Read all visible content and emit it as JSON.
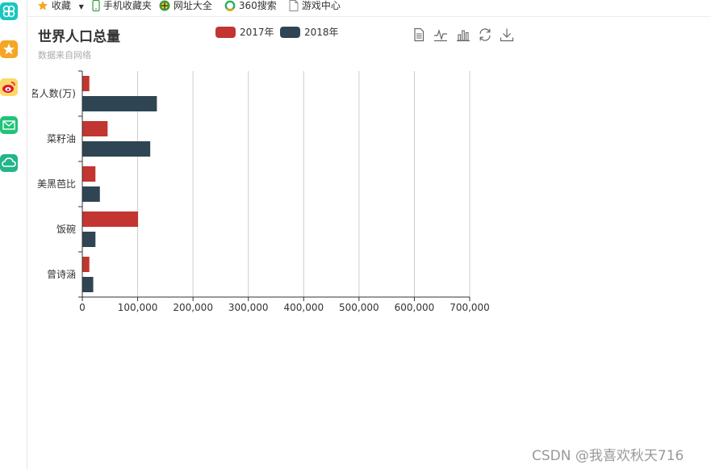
{
  "browser": {
    "bookmarks": [
      {
        "label": "收藏",
        "icon": "star-icon"
      },
      {
        "label": "手机收藏夹",
        "icon": "phone-icon"
      },
      {
        "label": "网址大全",
        "icon": "globe-icon"
      },
      {
        "label": "360搜索",
        "icon": "search-360-icon"
      },
      {
        "label": "游戏中心",
        "icon": "document-icon"
      }
    ],
    "sidebar_icons": [
      "clover-icon",
      "star-icon",
      "weibo-icon",
      "mail-icon",
      "cloud-icon"
    ]
  },
  "chart_data": {
    "type": "bar",
    "orientation": "horizontal",
    "title": "世界人口总量",
    "subtitle": "数据来自网络",
    "categories": [
      "曾诗涵",
      "饭碗",
      "美黑芭比",
      "菜籽油",
      "写名人数(万)"
    ],
    "series": [
      {
        "name": "2017年",
        "color": "#c23531",
        "values": [
          12000,
          100000,
          23000,
          45000,
          12000
        ]
      },
      {
        "name": "2018年",
        "color": "#2f4554",
        "values": [
          19000,
          23000,
          31000,
          122000,
          134000
        ]
      }
    ],
    "xlim": [
      0,
      700000
    ],
    "xticks": [
      "0",
      "100,000",
      "200,000",
      "300,000",
      "400,000",
      "500,000",
      "600,000",
      "700,000"
    ],
    "grid": true,
    "legend_position": "top-center"
  },
  "toolbox": [
    "data-view-icon",
    "line-chart-icon",
    "bar-chart-icon",
    "restore-icon",
    "download-icon"
  ],
  "watermark": "CSDN @我喜欢秋天716"
}
